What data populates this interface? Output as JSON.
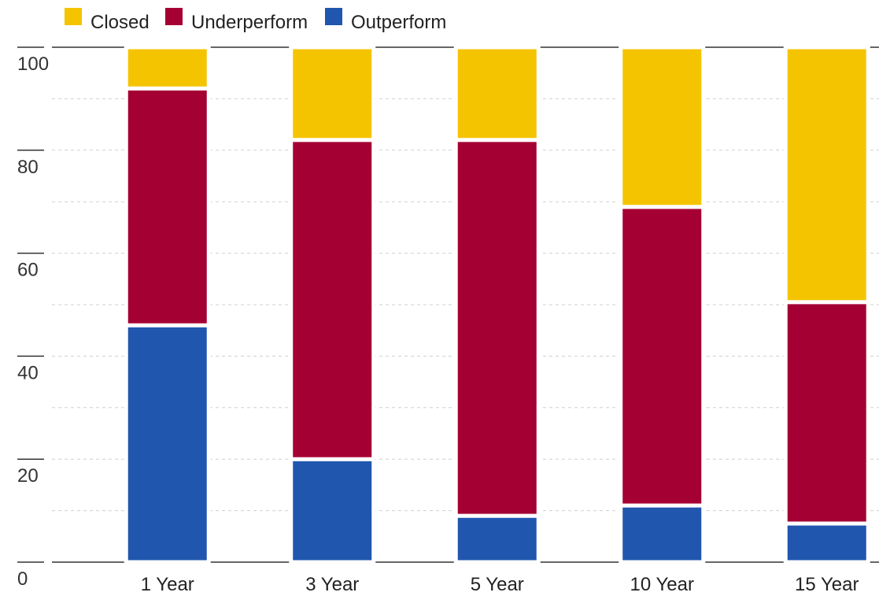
{
  "chart_data": {
    "type": "bar",
    "stacked": true,
    "categories": [
      "1 Year",
      "3 Year",
      "5 Year",
      "10 Year",
      "15 Year"
    ],
    "series": [
      {
        "name": "Outperform",
        "color": "#2056ae",
        "values": [
          46,
          20,
          9,
          11,
          7.5
        ]
      },
      {
        "name": "Underperform",
        "color": "#a50034",
        "values": [
          46,
          62,
          73,
          58,
          43
        ]
      },
      {
        "name": "Closed",
        "color": "#f5c400",
        "values": [
          8,
          18,
          18,
          31,
          49.5
        ]
      }
    ],
    "legend_order": [
      "Closed",
      "Underperform",
      "Outperform"
    ],
    "legend_position": "top-left",
    "yticks": [
      0,
      20,
      40,
      60,
      80,
      100
    ],
    "ylim": [
      0,
      100
    ],
    "grid": "dashed horizontal every 10",
    "title": "",
    "xlabel": "",
    "ylabel": ""
  }
}
